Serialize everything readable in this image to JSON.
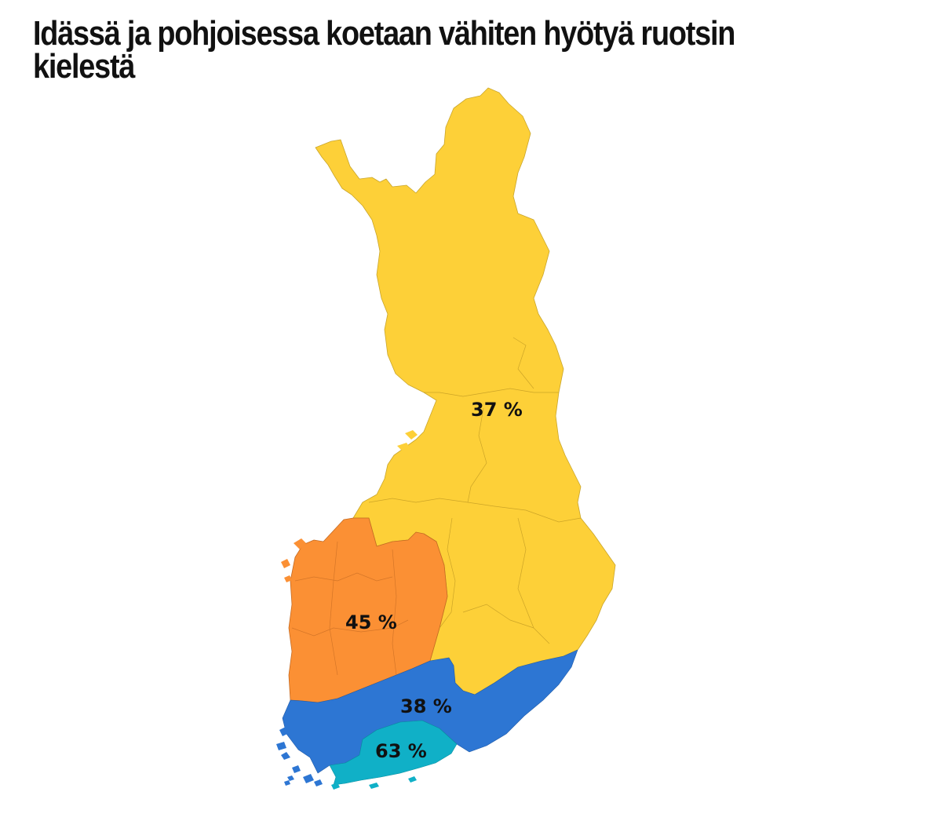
{
  "title": "Idässä ja pohjoisessa koetaan vähiten hyötyä ruotsin kielestä",
  "colors": {
    "yellow": "#fdd038",
    "orange": "#fb9034",
    "blue": "#2d76d3",
    "teal": "#10b0c7"
  },
  "regions": [
    {
      "name": "north-east",
      "label": "37 %",
      "value": 37,
      "color": "#fdd038"
    },
    {
      "name": "west",
      "label": "45 %",
      "value": 45,
      "color": "#fb9034"
    },
    {
      "name": "south",
      "label": "38 %",
      "value": 38,
      "color": "#2d76d3"
    },
    {
      "name": "capital",
      "label": "63 %",
      "value": 63,
      "color": "#10b0c7"
    }
  ]
}
